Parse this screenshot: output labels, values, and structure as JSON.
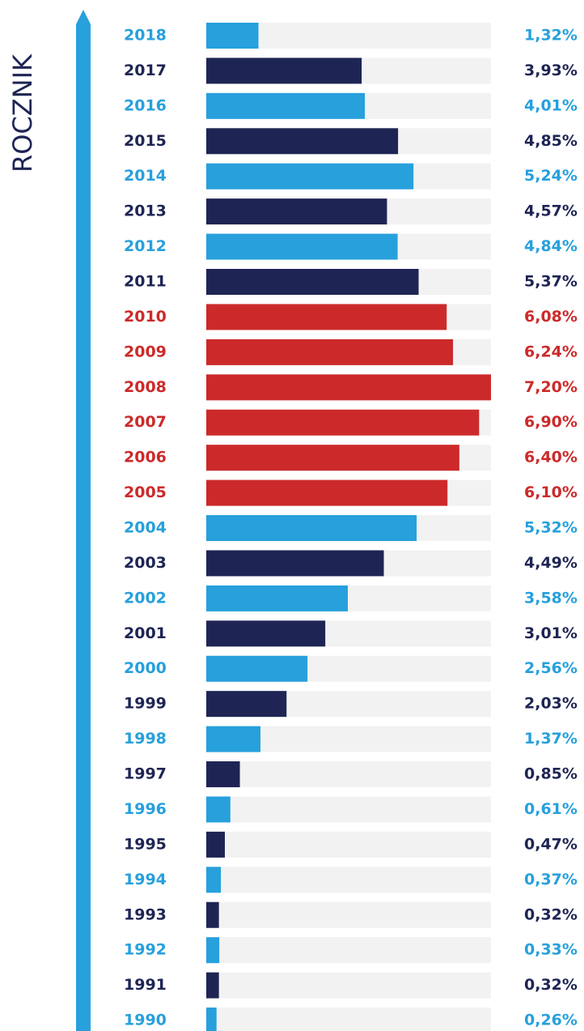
{
  "chart_data": {
    "type": "bar",
    "orientation": "horizontal",
    "y_label": "ROCZNIK",
    "categories": [
      "2018",
      "2017",
      "2016",
      "2015",
      "2014",
      "2013",
      "2012",
      "2011",
      "2010",
      "2009",
      "2008",
      "2007",
      "2006",
      "2005",
      "2004",
      "2003",
      "2002",
      "2001",
      "2000",
      "1999",
      "1998",
      "1997",
      "1996",
      "1995",
      "1994",
      "1993",
      "1992",
      "1991",
      "1990"
    ],
    "values": [
      1.32,
      3.93,
      4.01,
      4.85,
      5.24,
      4.57,
      4.84,
      5.37,
      6.08,
      6.24,
      7.2,
      6.9,
      6.4,
      6.1,
      5.32,
      4.49,
      3.58,
      3.01,
      2.56,
      2.03,
      1.37,
      0.85,
      0.61,
      0.47,
      0.37,
      0.32,
      0.33,
      0.32,
      0.26
    ],
    "value_labels": [
      "1,32%",
      "3,93%",
      "4,01%",
      "4,85%",
      "5,24%",
      "4,57%",
      "4,84%",
      "5,37%",
      "6,08%",
      "6,24%",
      "7,20%",
      "6,90%",
      "6,40%",
      "6,10%",
      "5,32%",
      "4,49%",
      "3,58%",
      "3,01%",
      "2,56%",
      "2,03%",
      "1,37%",
      "0,85%",
      "0,61%",
      "0,47%",
      "0,37%",
      "0,32%",
      "0,33%",
      "0,32%",
      "0,26%"
    ],
    "colors": [
      "#27a0dc",
      "#1e2554",
      "#27a0dc",
      "#1e2554",
      "#27a0dc",
      "#1e2554",
      "#27a0dc",
      "#1e2554",
      "#cc2a2a",
      "#cc2a2a",
      "#cc2a2a",
      "#cc2a2a",
      "#cc2a2a",
      "#cc2a2a",
      "#27a0dc",
      "#1e2554",
      "#27a0dc",
      "#1e2554",
      "#27a0dc",
      "#1e2554",
      "#27a0dc",
      "#1e2554",
      "#27a0dc",
      "#1e2554",
      "#27a0dc",
      "#1e2554",
      "#27a0dc",
      "#1e2554",
      "#27a0dc"
    ],
    "xlim": [
      0,
      7.2
    ]
  }
}
